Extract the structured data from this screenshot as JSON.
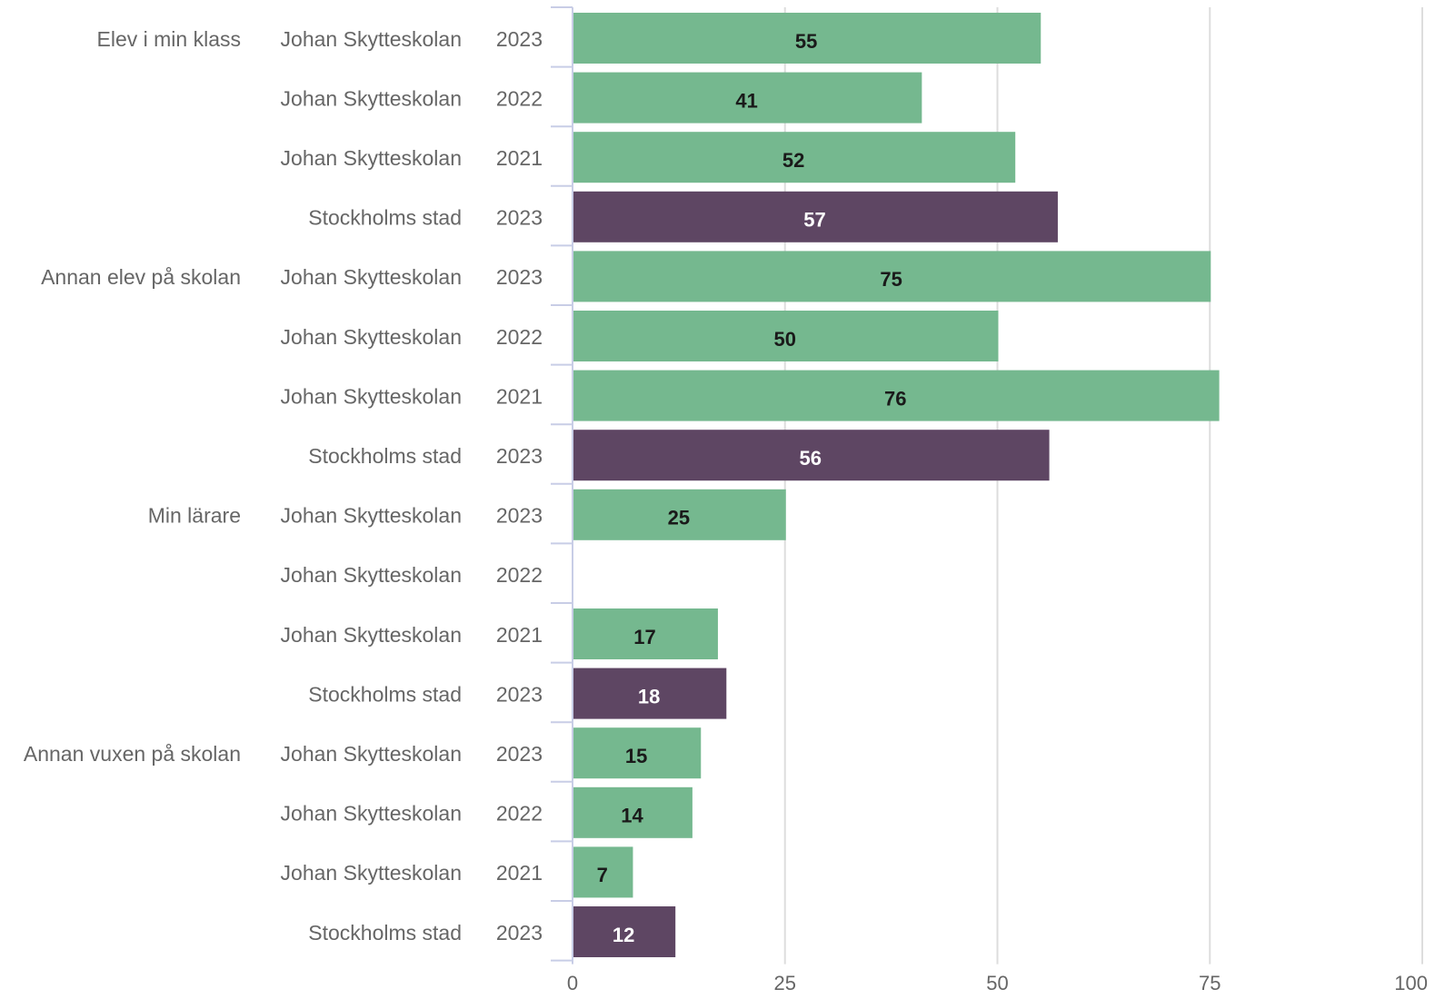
{
  "chart_data": {
    "type": "bar",
    "orientation": "horizontal",
    "grid": true,
    "xlim": [
      0,
      100
    ],
    "xticks": [
      "0",
      "25",
      "50",
      "75",
      "100"
    ],
    "colors": {
      "Johan Skytteskolan": "#75b88f",
      "Stockholms stad": "#5e4663",
      "label_on_green": "#1a1a1a",
      "label_on_purple": "#ffffff"
    },
    "rows": [
      {
        "group": "Elev i min klass",
        "unit": "Johan Skytteskolan",
        "year": "2023",
        "value": 55
      },
      {
        "group": "",
        "unit": "Johan Skytteskolan",
        "year": "2022",
        "value": 41
      },
      {
        "group": "",
        "unit": "Johan Skytteskolan",
        "year": "2021",
        "value": 52
      },
      {
        "group": "",
        "unit": "Stockholms stad",
        "year": "2023",
        "value": 57
      },
      {
        "group": "Annan elev på skolan",
        "unit": "Johan Skytteskolan",
        "year": "2023",
        "value": 75
      },
      {
        "group": "",
        "unit": "Johan Skytteskolan",
        "year": "2022",
        "value": 50
      },
      {
        "group": "",
        "unit": "Johan Skytteskolan",
        "year": "2021",
        "value": 76
      },
      {
        "group": "",
        "unit": "Stockholms stad",
        "year": "2023",
        "value": 56
      },
      {
        "group": "Min lärare",
        "unit": "Johan Skytteskolan",
        "year": "2023",
        "value": 25
      },
      {
        "group": "",
        "unit": "Johan Skytteskolan",
        "year": "2022",
        "value": null
      },
      {
        "group": "",
        "unit": "Johan Skytteskolan",
        "year": "2021",
        "value": 17
      },
      {
        "group": "",
        "unit": "Stockholms stad",
        "year": "2023",
        "value": 18
      },
      {
        "group": "Annan vuxen på skolan",
        "unit": "Johan Skytteskolan",
        "year": "2023",
        "value": 15
      },
      {
        "group": "",
        "unit": "Johan Skytteskolan",
        "year": "2022",
        "value": 14
      },
      {
        "group": "",
        "unit": "Johan Skytteskolan",
        "year": "2021",
        "value": 7
      },
      {
        "group": "",
        "unit": "Stockholms stad",
        "year": "2023",
        "value": 12
      }
    ]
  }
}
